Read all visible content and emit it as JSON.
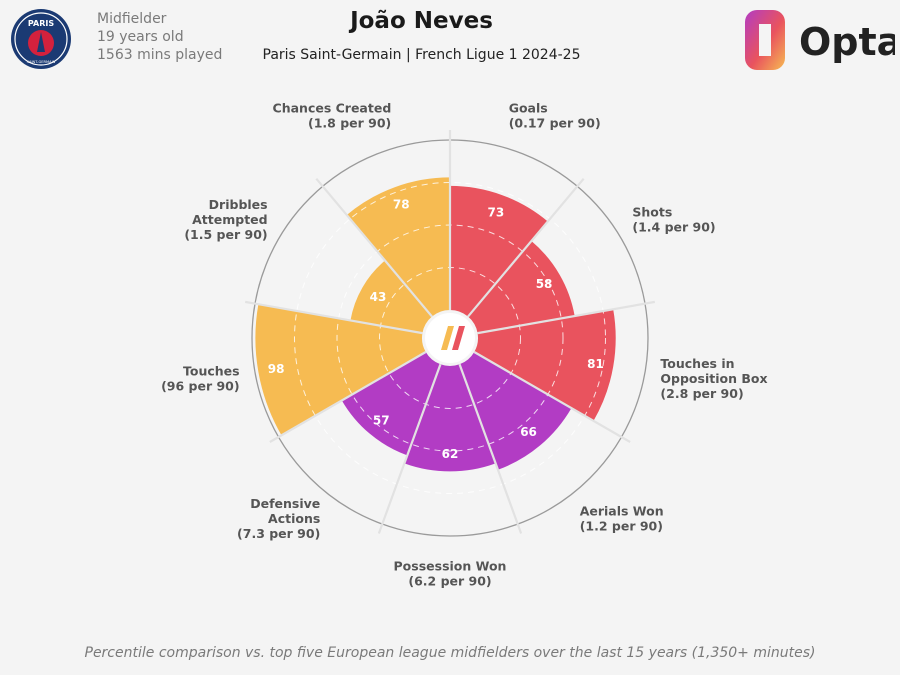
{
  "player": {
    "name": "João Neves",
    "team_competition": "Paris Saint-Germain | French Ligue 1 2024-25",
    "position": "Midfielder",
    "age": "19 years old",
    "minutes": "1563 mins played"
  },
  "crest": {
    "text_top": "PARIS",
    "text_bottom": "SAINT-GERMAIN",
    "primary": "#1b3a73",
    "accent": "#d4213d"
  },
  "brand": {
    "name": "Opta"
  },
  "footer": "Percentile comparison vs. top five European league midfielders over the last 15 years (1,350+ minutes)",
  "colors": {
    "attacking": "#e9535e",
    "possession": "#f6bb52",
    "defending": "#b23cc4"
  },
  "chart_data": {
    "type": "polar-bar",
    "scale": [
      0,
      100
    ],
    "grid": true,
    "categories": [
      {
        "label": [
          "Goals",
          "(0.17 per 90)"
        ],
        "value": 73,
        "group": "attacking"
      },
      {
        "label": [
          "Shots",
          "(1.4 per 90)"
        ],
        "value": 58,
        "group": "attacking"
      },
      {
        "label": [
          "Touches in",
          "Opposition Box",
          "(2.8 per 90)"
        ],
        "value": 81,
        "group": "attacking"
      },
      {
        "label": [
          "Aerials Won",
          "(1.2 per 90)"
        ],
        "value": 66,
        "group": "defending"
      },
      {
        "label": [
          "Possession Won",
          "(6.2 per 90)"
        ],
        "value": 62,
        "group": "defending"
      },
      {
        "label": [
          "Defensive",
          "Actions",
          "(7.3 per 90)"
        ],
        "value": 57,
        "group": "defending"
      },
      {
        "label": [
          "Touches",
          "(96 per 90)"
        ],
        "value": 98,
        "group": "possession"
      },
      {
        "label": [
          "Dribbles",
          "Attempted",
          "(1.5 per 90)"
        ],
        "value": 43,
        "group": "possession"
      },
      {
        "label": [
          "Chances Created",
          "(1.8 per 90)"
        ],
        "value": 78,
        "group": "possession"
      }
    ]
  }
}
